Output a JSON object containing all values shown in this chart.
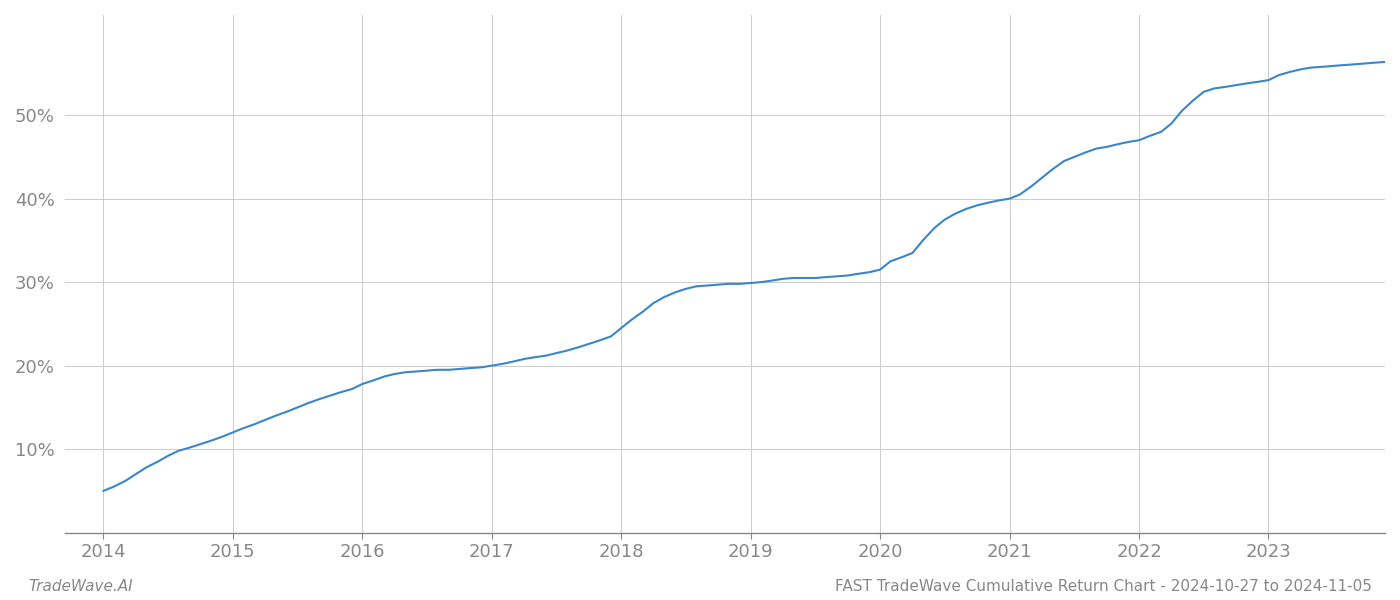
{
  "title": "",
  "footer_left": "TradeWave.AI",
  "footer_right": "FAST TradeWave Cumulative Return Chart - 2024-10-27 to 2024-11-05",
  "line_color": "#3a86c8",
  "background_color": "#ffffff",
  "grid_color": "#cccccc",
  "x_values": [
    2014.0,
    2014.08,
    2014.17,
    2014.25,
    2014.33,
    2014.42,
    2014.5,
    2014.58,
    2014.67,
    2014.75,
    2014.83,
    2014.92,
    2015.0,
    2015.08,
    2015.17,
    2015.25,
    2015.33,
    2015.42,
    2015.5,
    2015.58,
    2015.67,
    2015.75,
    2015.83,
    2015.92,
    2016.0,
    2016.08,
    2016.17,
    2016.25,
    2016.33,
    2016.42,
    2016.5,
    2016.58,
    2016.67,
    2016.75,
    2016.83,
    2016.92,
    2017.0,
    2017.08,
    2017.17,
    2017.25,
    2017.33,
    2017.42,
    2017.5,
    2017.58,
    2017.67,
    2017.75,
    2017.83,
    2017.92,
    2018.0,
    2018.08,
    2018.17,
    2018.25,
    2018.33,
    2018.42,
    2018.5,
    2018.58,
    2018.67,
    2018.75,
    2018.83,
    2018.92,
    2019.0,
    2019.08,
    2019.17,
    2019.25,
    2019.33,
    2019.42,
    2019.5,
    2019.58,
    2019.67,
    2019.75,
    2019.83,
    2019.92,
    2020.0,
    2020.08,
    2020.17,
    2020.25,
    2020.33,
    2020.42,
    2020.5,
    2020.58,
    2020.67,
    2020.75,
    2020.83,
    2020.92,
    2021.0,
    2021.08,
    2021.17,
    2021.25,
    2021.33,
    2021.42,
    2021.5,
    2021.58,
    2021.67,
    2021.75,
    2021.83,
    2021.92,
    2022.0,
    2022.08,
    2022.17,
    2022.25,
    2022.33,
    2022.42,
    2022.5,
    2022.58,
    2022.67,
    2022.75,
    2022.83,
    2022.92,
    2023.0,
    2023.08,
    2023.17,
    2023.25,
    2023.33,
    2023.42,
    2023.5,
    2023.58,
    2023.67,
    2023.75,
    2023.83,
    2023.92
  ],
  "y_values": [
    5.0,
    5.5,
    6.2,
    7.0,
    7.8,
    8.5,
    9.2,
    9.8,
    10.2,
    10.6,
    11.0,
    11.5,
    12.0,
    12.5,
    13.0,
    13.5,
    14.0,
    14.5,
    15.0,
    15.5,
    16.0,
    16.4,
    16.8,
    17.2,
    17.8,
    18.2,
    18.7,
    19.0,
    19.2,
    19.3,
    19.4,
    19.5,
    19.5,
    19.6,
    19.7,
    19.8,
    20.0,
    20.2,
    20.5,
    20.8,
    21.0,
    21.2,
    21.5,
    21.8,
    22.2,
    22.6,
    23.0,
    23.5,
    24.5,
    25.5,
    26.5,
    27.5,
    28.2,
    28.8,
    29.2,
    29.5,
    29.6,
    29.7,
    29.8,
    29.8,
    29.9,
    30.0,
    30.2,
    30.4,
    30.5,
    30.5,
    30.5,
    30.6,
    30.7,
    30.8,
    31.0,
    31.2,
    31.5,
    32.5,
    33.0,
    33.5,
    35.0,
    36.5,
    37.5,
    38.2,
    38.8,
    39.2,
    39.5,
    39.8,
    40.0,
    40.5,
    41.5,
    42.5,
    43.5,
    44.5,
    45.0,
    45.5,
    46.0,
    46.2,
    46.5,
    46.8,
    47.0,
    47.5,
    48.0,
    49.0,
    50.5,
    51.8,
    52.8,
    53.2,
    53.4,
    53.6,
    53.8,
    54.0,
    54.2,
    54.8,
    55.2,
    55.5,
    55.7,
    55.8,
    55.9,
    56.0,
    56.1,
    56.2,
    56.3,
    56.4
  ],
  "xlim": [
    2013.7,
    2023.9
  ],
  "ylim": [
    0,
    62
  ],
  "yticks": [
    10,
    20,
    30,
    40,
    50
  ],
  "xticks": [
    2014,
    2015,
    2016,
    2017,
    2018,
    2019,
    2020,
    2021,
    2022,
    2023
  ],
  "line_width": 1.5,
  "footer_fontsize": 11,
  "tick_fontsize": 13,
  "tick_color": "#888888",
  "spine_color": "#888888"
}
